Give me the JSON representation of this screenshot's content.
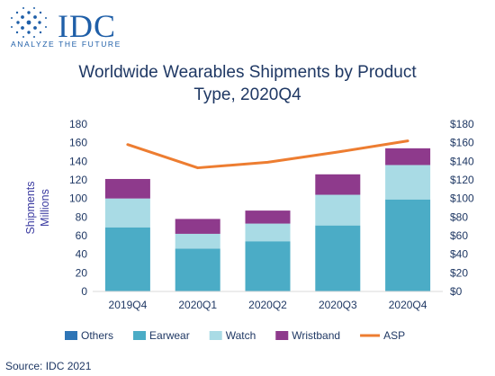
{
  "brand": {
    "name": "IDC",
    "tagline": "ANALYZE THE FUTURE",
    "color": "#1f5fa8"
  },
  "source": "Source: IDC 2021",
  "chart_data": {
    "type": "bar",
    "stacked": true,
    "title_lines": [
      "Worldwide Wearables Shipments by Product",
      "Type, 2020Q4"
    ],
    "ylabel_lines": [
      "Shipments",
      "Millions"
    ],
    "y2label": "",
    "categories": [
      "2019Q4",
      "2020Q1",
      "2020Q2",
      "2020Q3",
      "2020Q4"
    ],
    "series": [
      {
        "name": "Others",
        "type": "bar",
        "axis": "left",
        "color": "#2e75b6",
        "values": [
          0,
          0,
          0,
          0,
          0
        ]
      },
      {
        "name": "Earwear",
        "type": "bar",
        "axis": "left",
        "color": "#4bacc6",
        "values": [
          69,
          46,
          54,
          71,
          99
        ]
      },
      {
        "name": "Watch",
        "type": "bar",
        "axis": "left",
        "color": "#a9dbe5",
        "values": [
          31,
          16,
          19,
          33,
          37
        ]
      },
      {
        "name": "Wristband",
        "type": "bar",
        "axis": "left",
        "color": "#8e3a8c",
        "values": [
          21,
          16,
          14,
          22,
          18
        ]
      },
      {
        "name": "ASP",
        "type": "line",
        "axis": "right",
        "color": "#ed7d31",
        "values": [
          158,
          133,
          139,
          150,
          162
        ]
      }
    ],
    "ylim": [
      0,
      180
    ],
    "y2lim": [
      0,
      180
    ],
    "yticks": [
      "0",
      "20",
      "40",
      "60",
      "80",
      "100",
      "120",
      "140",
      "160",
      "180"
    ],
    "y2ticks": [
      "$0",
      "$20",
      "$40",
      "$60",
      "$80",
      "$100",
      "$120",
      "$140",
      "$160",
      "$180"
    ],
    "grid": false,
    "legend": "bottom",
    "axis_text_color": "#1f3864",
    "ylabel_color": "#3a3aa0"
  }
}
